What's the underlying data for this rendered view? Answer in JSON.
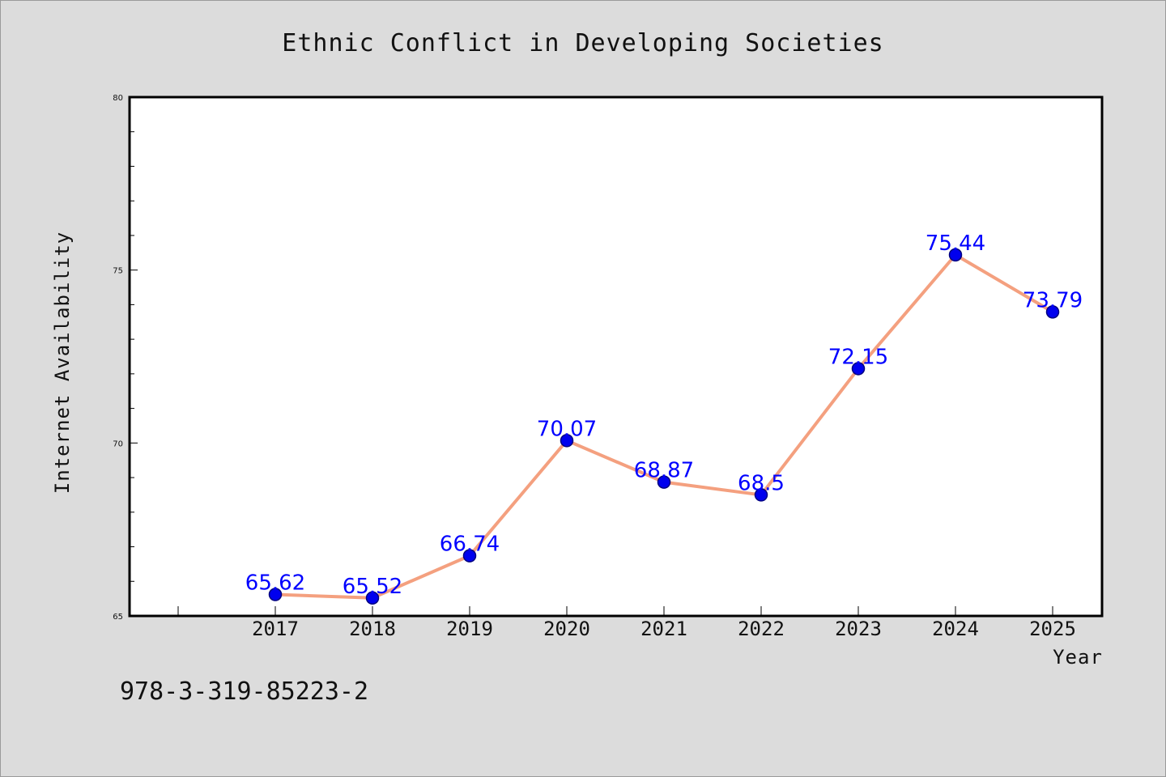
{
  "chart_data": {
    "type": "line",
    "title": "Ethnic Conflict in Developing Societies",
    "xlabel": "Year",
    "ylabel": "Internet Availability",
    "x": [
      "2017",
      "2018",
      "2019",
      "2020",
      "2021",
      "2022",
      "2023",
      "2024",
      "2025"
    ],
    "series": [
      {
        "values": [
          65.62,
          65.52,
          66.74,
          70.07,
          68.87,
          68.5,
          72.15,
          75.44,
          73.79
        ],
        "labels": [
          "65.62",
          "65.52",
          "66.74",
          "70.07",
          "68.87",
          "68.5",
          "72.15",
          "75.44",
          "73.79"
        ]
      }
    ],
    "ylim": [
      65,
      80
    ],
    "yticks": [
      "65",
      "70",
      "75",
      "80"
    ],
    "grid": false,
    "legend": "none",
    "colors": {
      "line": "#f4a07f",
      "marker": "#0000ee",
      "marker_edge": "#000080",
      "data_label": "#0000ff",
      "plot_bg": "#ffffff",
      "figure_bg": "#dcdcdc"
    }
  },
  "footer": {
    "isbn": "978-3-319-85223-2"
  }
}
